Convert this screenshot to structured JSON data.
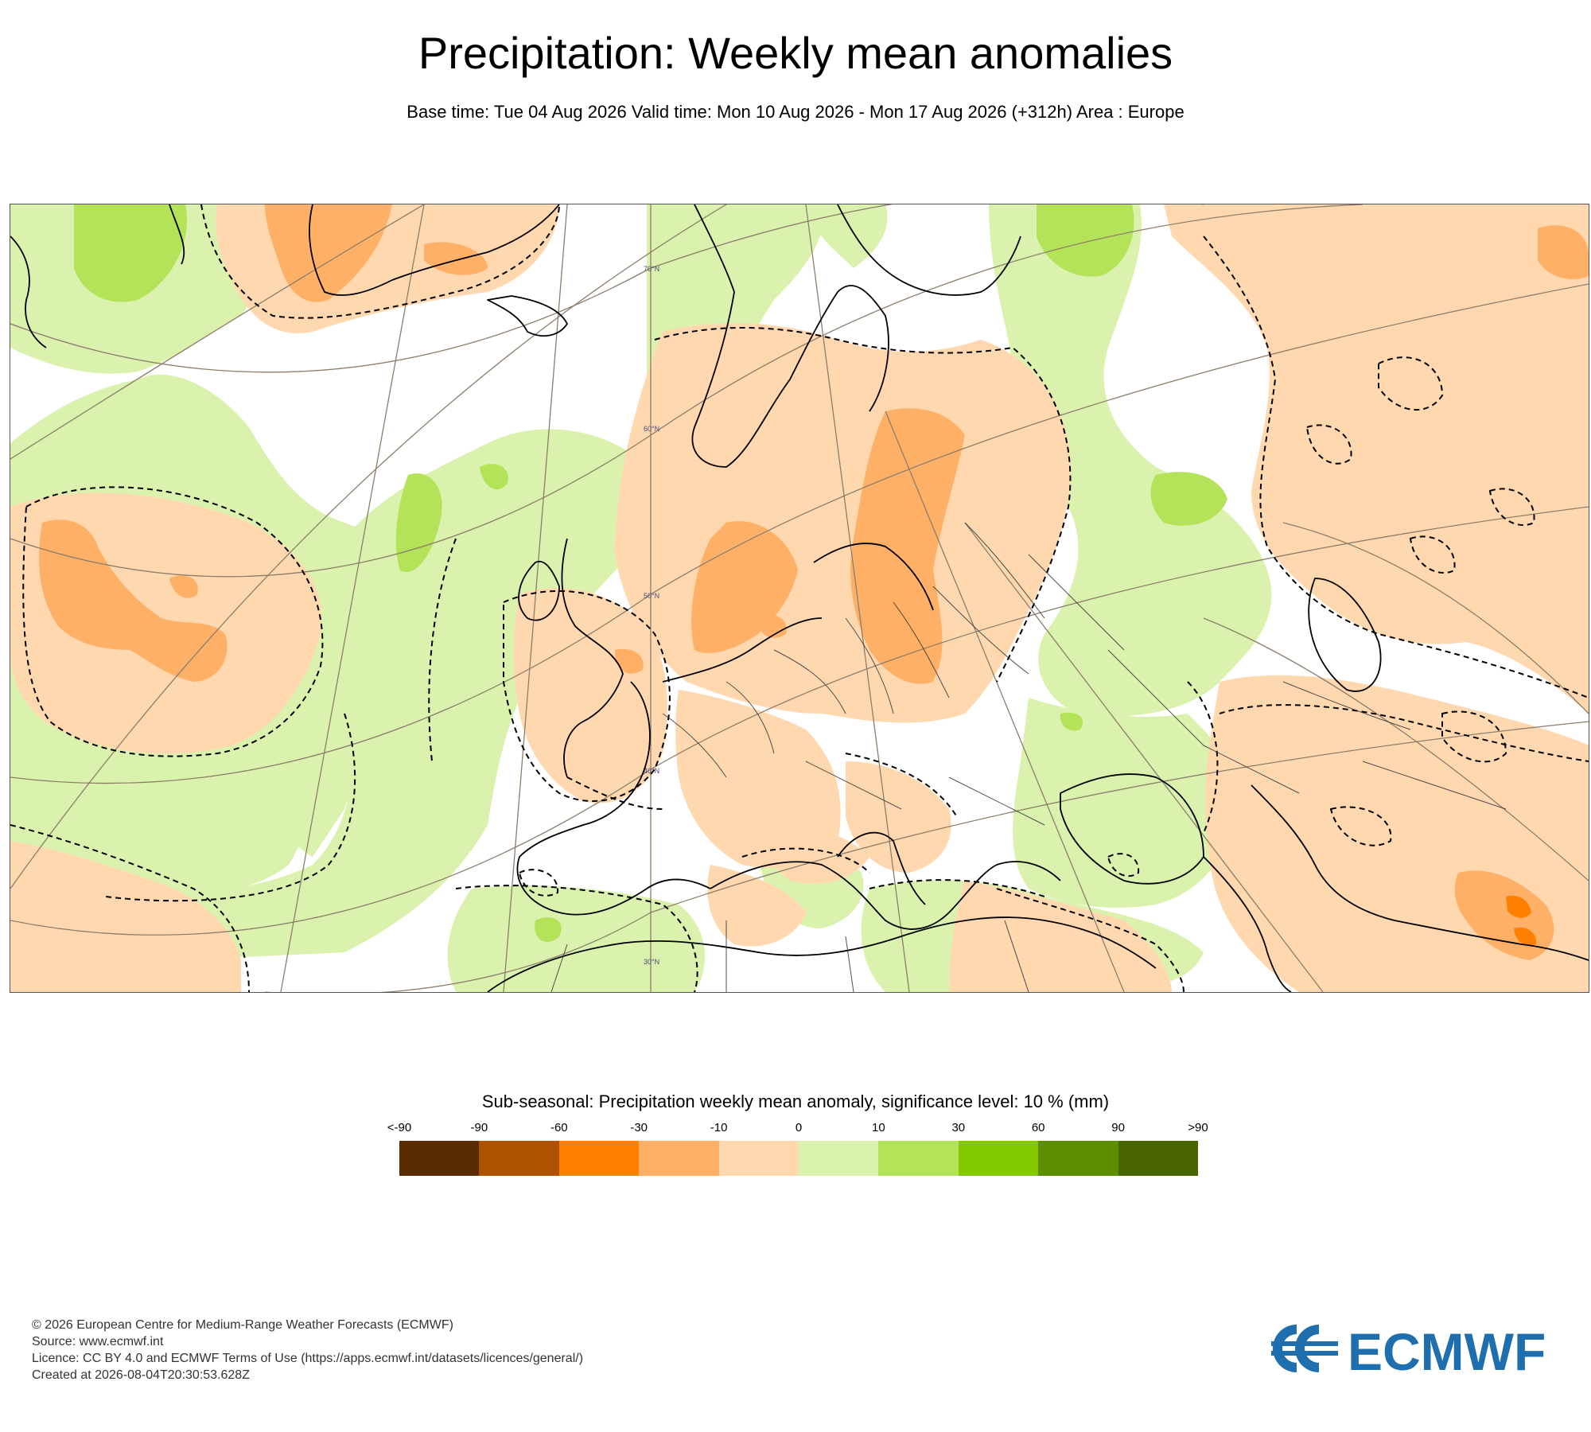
{
  "header": {
    "title": "Precipitation: Weekly mean anomalies",
    "subtitle": "Base time: Tue 04 Aug 2026 Valid time: Mon 10 Aug 2026 - Mon 17 Aug 2026 (+312h) Area : Europe"
  },
  "map": {
    "area": "Europe",
    "latitude_labels": [
      "70°N",
      "60°N",
      "50°N",
      "40°N",
      "30°N"
    ],
    "colors": {
      "ocean_or_no_signal": "#ffffff",
      "coast_line": "#000000",
      "grid_line": "#8c7e6a"
    }
  },
  "legend": {
    "title": "Sub-seasonal: Precipitation weekly mean anomaly, significance level: 10 % (mm)",
    "labels": [
      "<-90",
      "-90",
      "-60",
      "-30",
      "-10",
      "0",
      "10",
      "30",
      "60",
      "90",
      ">90"
    ],
    "colors": [
      "#5a2a00",
      "#ad5200",
      "#ff7f00",
      "#ffb067",
      "#ffd8b0",
      "#daf2ad",
      "#b4e35a",
      "#84c800",
      "#5e8e00",
      "#4a6500"
    ]
  },
  "footer": {
    "lines": [
      "© 2026 European Centre for Medium-Range Weather Forecasts (ECMWF)",
      "Source: www.ecmwf.int",
      "Licence: CC BY 4.0 and ECMWF Terms of Use (https://apps.ecmwf.int/datasets/licences/general/)",
      "Created at 2026-08-04T20:30:53.628Z"
    ]
  },
  "logo": {
    "text": "ECMWF",
    "color": "#1f6fae"
  }
}
